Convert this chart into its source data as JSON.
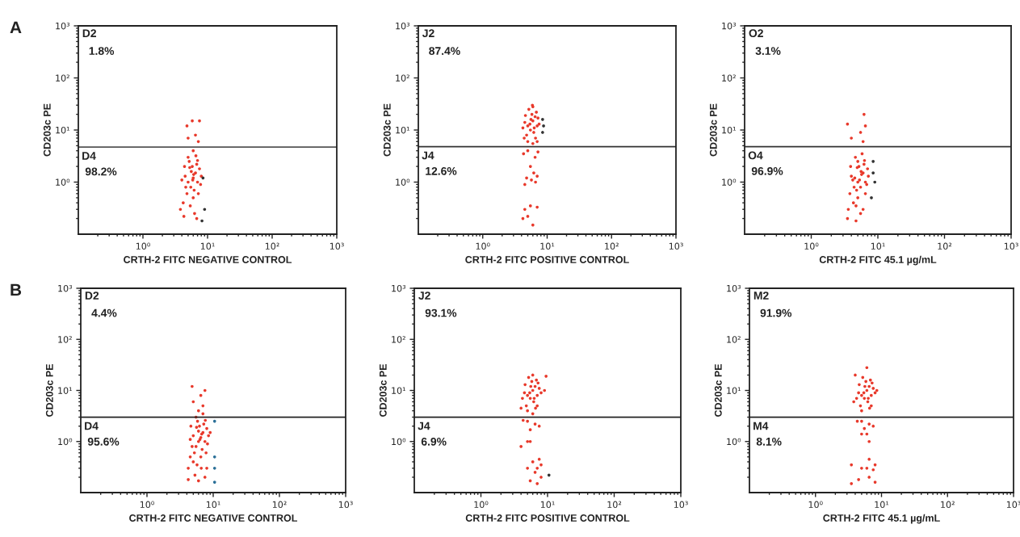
{
  "chart_data": [
    {
      "type": "scatter",
      "xlabel": "CRTH-2 FITC NEGATIVE CONTROL",
      "ylabel": "CD203c PE",
      "log": "xy",
      "marker": "circle",
      "xlim": [
        0.1,
        1000
      ],
      "ylim": [
        0.1,
        1000
      ],
      "xticks": [
        {
          "value": 1,
          "label": "10⁰"
        },
        {
          "value": 10,
          "label": "10¹"
        },
        {
          "value": 100,
          "label": "10²"
        },
        {
          "value": 1000,
          "label": "10³"
        }
      ],
      "yticks": [
        {
          "value": 1,
          "label": "10⁰"
        },
        {
          "value": 10,
          "label": "10¹"
        },
        {
          "value": 100,
          "label": "10²"
        },
        {
          "value": 1000,
          "label": "10³"
        }
      ],
      "ref_lines": [
        {
          "axis": "y",
          "value": 4.7,
          "color": "#555555"
        }
      ],
      "annotations": [
        "D2",
        "1.8%",
        "D4",
        "98.2%",
        "A"
      ],
      "series": [
        {
          "color": "#e8392b",
          "x": [
            5,
            6,
            5.5,
            6.5,
            4.5,
            7,
            5.8,
            6.2,
            4.8,
            7.5,
            5.2,
            6.8,
            4,
            8,
            5.6,
            6,
            4.2,
            7.2,
            5,
            6.6,
            3.8,
            6.3,
            5.4,
            4.6,
            7.8,
            5.9,
            6.1,
            5.3,
            4.4,
            7,
            6,
            5,
            6.5,
            4.8,
            5.8,
            7.5,
            7.2,
            4.3,
            6.8
          ],
          "values": [
            1,
            1.2,
            0.8,
            1.5,
            1.3,
            1,
            2,
            0.7,
            0.6,
            1.8,
            2.5,
            2.2,
            1.1,
            1.3,
            1.6,
            0.5,
            0.4,
            0.6,
            3,
            3.2,
            0.3,
            0.25,
            0.35,
            0.8,
            0.9,
            1.1,
            1.4,
            1.9,
            2,
            2.6,
            4,
            7,
            8,
            12,
            15,
            15,
            6,
            0.22,
            0.2
          ]
        },
        {
          "color": "#333333",
          "x": [
            8.5,
            9,
            8.2
          ],
          "values": [
            1.2,
            0.3,
            0.18
          ]
        }
      ]
    },
    {
      "type": "scatter",
      "xlabel": "CRTH-2 FITC POSITIVE CONTROL",
      "ylabel": "CD203c PE",
      "log": "xy",
      "marker": "circle",
      "xlim": [
        0.1,
        1000
      ],
      "ylim": [
        0.1,
        1000
      ],
      "xticks": [
        {
          "value": 1,
          "label": "10⁰"
        },
        {
          "value": 10,
          "label": "10¹"
        },
        {
          "value": 100,
          "label": "10²"
        },
        {
          "value": 1000,
          "label": "10³"
        }
      ],
      "yticks": [
        {
          "value": 1,
          "label": "10⁰"
        },
        {
          "value": 10,
          "label": "10¹"
        },
        {
          "value": 100,
          "label": "10²"
        },
        {
          "value": 1000,
          "label": "10³"
        }
      ],
      "ref_lines": [
        {
          "axis": "y",
          "value": 4.8,
          "color": "#333333"
        }
      ],
      "annotations": [
        "J2",
        "87.4%",
        "J4",
        "12.6%"
      ],
      "series": [
        {
          "color": "#e8392b",
          "x": [
            5,
            6,
            5.5,
            6.5,
            4.5,
            7,
            5.8,
            6.2,
            4.8,
            7.5,
            5.2,
            6.8,
            4.2,
            5.6,
            6,
            5,
            6.6,
            4.6,
            7.2,
            5.4,
            6.3,
            5.9,
            4.4,
            7,
            6,
            5,
            6.5,
            4.3,
            7.2,
            5.5,
            6.2,
            4.8,
            7,
            5.7,
            4.5,
            6.6,
            4.5,
            5.5,
            4.2,
            6,
            5,
            7
          ],
          "values": [
            12,
            15,
            10,
            18,
            14,
            12,
            20,
            9,
            8,
            13,
            25,
            22,
            11,
            16,
            28,
            6,
            7,
            19,
            17,
            13,
            11,
            30,
            7,
            6,
            5.5,
            4,
            3,
            3.5,
            3.8,
            2,
            1.5,
            1.2,
            1.3,
            1.1,
            0.9,
            1,
            0.3,
            0.35,
            0.2,
            0.15,
            0.22,
            0.33
          ]
        },
        {
          "color": "#333333",
          "x": [
            8.5,
            8.8,
            8.5
          ],
          "values": [
            16,
            12,
            9
          ]
        }
      ]
    },
    {
      "type": "scatter",
      "xlabel": "CRTH-2 FITC 45.1 µg/mL",
      "ylabel": "CD203c PE",
      "log": "xy",
      "marker": "circle",
      "xlim": [
        0.1,
        1000
      ],
      "ylim": [
        0.1,
        1000
      ],
      "xticks": [
        {
          "value": 1,
          "label": "10⁰"
        },
        {
          "value": 10,
          "label": "10¹"
        },
        {
          "value": 100,
          "label": "10²"
        },
        {
          "value": 1000,
          "label": "10³"
        }
      ],
      "yticks": [
        {
          "value": 1,
          "label": "10⁰"
        },
        {
          "value": 10,
          "label": "10¹"
        },
        {
          "value": 100,
          "label": "10²"
        },
        {
          "value": 1000,
          "label": "10³"
        }
      ],
      "ref_lines": [
        {
          "axis": "y",
          "value": 4.8,
          "color": "#333333"
        }
      ],
      "annotations": [
        "O2",
        "3.1%",
        "O4",
        "96.9%"
      ],
      "series": [
        {
          "color": "#e8392b",
          "x": [
            5,
            4.5,
            5.5,
            6,
            4,
            6.5,
            5.2,
            4.8,
            3.8,
            7,
            5,
            6.2,
            4.2,
            7.2,
            5.6,
            5,
            4.3,
            6.5,
            4.6,
            5.8,
            3.6,
            6,
            4.7,
            4.4,
            6.8,
            5.3,
            5.7,
            4.9,
            3.9,
            6.3,
            4,
            6,
            5.5,
            6.5,
            3.5,
            6.2,
            3.5,
            4.7,
            5.5
          ],
          "values": [
            1,
            1.2,
            0.8,
            1.5,
            1.3,
            1,
            2,
            0.7,
            0.6,
            1.8,
            2.5,
            2.2,
            1.1,
            1.3,
            1.6,
            0.5,
            0.4,
            0.6,
            3,
            3.5,
            0.3,
            0.3,
            0.35,
            0.8,
            0.9,
            1.1,
            1.4,
            1.9,
            2,
            2.6,
            7,
            6,
            9,
            12,
            13,
            20,
            0.2,
            0.18,
            0.25
          ]
        },
        {
          "color": "#333333",
          "x": [
            8.5,
            9,
            8,
            8.5
          ],
          "values": [
            1.5,
            1,
            0.5,
            2.5
          ]
        }
      ]
    },
    {
      "type": "scatter",
      "xlabel": "CRTH-2 FITC NEGATIVE CONTROL",
      "ylabel": "CD203c PE",
      "log": "xy",
      "marker": "circle",
      "xlim": [
        0.1,
        1000
      ],
      "ylim": [
        0.1,
        1000
      ],
      "xticks": [
        {
          "value": 1,
          "label": "10⁰"
        },
        {
          "value": 10,
          "label": "10¹"
        },
        {
          "value": 100,
          "label": "10²"
        },
        {
          "value": 1000,
          "label": "10³"
        }
      ],
      "yticks": [
        {
          "value": 1,
          "label": "10⁰"
        },
        {
          "value": 10,
          "label": "10¹"
        },
        {
          "value": 100,
          "label": "10²"
        },
        {
          "value": 1000,
          "label": "10³"
        }
      ],
      "ref_lines": [
        {
          "axis": "y",
          "value": 3,
          "color": "#222222"
        }
      ],
      "annotations": [
        "D2",
        "4.4%",
        "D4",
        "95.6%",
        "B"
      ],
      "series": [
        {
          "color": "#e8392b",
          "x": [
            6,
            6.5,
            5.5,
            7,
            5,
            7.5,
            6.2,
            6.8,
            5.2,
            8,
            5.8,
            7.2,
            4.5,
            8.5,
            6,
            6.5,
            5,
            7.8,
            5.5,
            7,
            4.2,
            6.6,
            5.7,
            4.8,
            8.2,
            6.3,
            6.7,
            5.6,
            4.6,
            7.6,
            6,
            7,
            5,
            6.5,
            4.8,
            7.5,
            4.2,
            6,
            7.5,
            5.3,
            8,
            4.5,
            9
          ],
          "values": [
            1,
            1.2,
            0.8,
            1.5,
            1.3,
            1,
            2,
            0.7,
            0.6,
            1.8,
            2.5,
            2.2,
            1.1,
            1.3,
            1.6,
            0.5,
            0.4,
            0.6,
            3,
            3.5,
            0.3,
            0.3,
            0.35,
            0.8,
            0.9,
            1.1,
            1.4,
            1.9,
            2,
            2.6,
            4,
            5,
            6,
            8,
            12,
            10,
            0.18,
            0.17,
            0.2,
            0.22,
            0.3,
            0.5,
            1.5
          ]
        },
        {
          "color": "#2a6f97",
          "x": [
            10.5,
            10.5,
            10.5,
            10.5
          ],
          "values": [
            2.5,
            0.5,
            0.3,
            0.16
          ]
        }
      ]
    },
    {
      "type": "scatter",
      "xlabel": "CRTH-2 FITC POSITIVE CONTROL",
      "ylabel": "CD203c PE",
      "log": "xy",
      "marker": "circle",
      "xlim": [
        0.1,
        1000
      ],
      "ylim": [
        0.1,
        1000
      ],
      "xticks": [
        {
          "value": 1,
          "label": "10⁰"
        },
        {
          "value": 10,
          "label": "10¹"
        },
        {
          "value": 100,
          "label": "10²"
        },
        {
          "value": 1000,
          "label": "10³"
        }
      ],
      "yticks": [
        {
          "value": 1,
          "label": "10⁰"
        },
        {
          "value": 10,
          "label": "10¹"
        },
        {
          "value": 100,
          "label": "10²"
        },
        {
          "value": 1000,
          "label": "10³"
        }
      ],
      "ref_lines": [
        {
          "axis": "y",
          "value": 3,
          "color": "#222222"
        }
      ],
      "annotations": [
        "J2",
        "93.1%",
        "J4",
        "6.9%"
      ],
      "series": [
        {
          "color": "#e8392b",
          "x": [
            5,
            6,
            5.5,
            6.5,
            4.5,
            7,
            5.8,
            6.2,
            4.8,
            7.5,
            5.2,
            6.8,
            4.2,
            8,
            5.6,
            6,
            5,
            6.6,
            4.6,
            7.2,
            5.4,
            6.3,
            9,
            9.5,
            4,
            7,
            6,
            5,
            6.5,
            4.3,
            7.5,
            5.5,
            4,
            5,
            5.5,
            6,
            7.5,
            5,
            6.5,
            7,
            8,
            5.5,
            7,
            8
          ],
          "values": [
            8,
            10,
            7,
            12,
            9,
            8,
            15,
            6,
            5,
            11,
            18,
            16,
            7,
            9,
            12,
            20,
            4,
            4.5,
            13,
            14,
            9,
            7,
            10,
            19,
            4.5,
            5,
            3.5,
            2.5,
            2.2,
            2.6,
            2,
            1.7,
            0.8,
            1,
            1,
            0.4,
            0.45,
            0.3,
            0.25,
            0.3,
            0.35,
            0.17,
            0.15,
            0.2
          ]
        },
        {
          "color": "#333333",
          "x": [
            10.5
          ],
          "values": [
            0.22
          ]
        }
      ]
    },
    {
      "type": "scatter",
      "xlabel": "CRTH-2 FITC 45.1 µg/mL",
      "ylabel": "CD203c PE",
      "log": "xy",
      "marker": "circle",
      "xlim": [
        0.1,
        1000
      ],
      "ylim": [
        0.1,
        1000
      ],
      "xticks": [
        {
          "value": 1,
          "label": "10⁰"
        },
        {
          "value": 10,
          "label": "10¹"
        },
        {
          "value": 100,
          "label": "10²"
        },
        {
          "value": 1000,
          "label": "10³"
        }
      ],
      "yticks": [
        {
          "value": 1,
          "label": "10⁰"
        },
        {
          "value": 10,
          "label": "10¹"
        },
        {
          "value": 100,
          "label": "10²"
        },
        {
          "value": 1000,
          "label": "10³"
        }
      ],
      "ref_lines": [
        {
          "axis": "y",
          "value": 3,
          "color": "#222222"
        }
      ],
      "annotations": [
        "M2",
        "91.9%",
        "M4",
        "8.1%"
      ],
      "series": [
        {
          "color": "#e8392b",
          "x": [
            5,
            6,
            5.5,
            6.5,
            4.5,
            7,
            5.8,
            6.2,
            4.8,
            7.5,
            5.2,
            6.8,
            4.2,
            8,
            5.6,
            6,
            5,
            6.6,
            4.6,
            7.2,
            5.4,
            6.3,
            8.5,
            4,
            3.8,
            7,
            5,
            6.5,
            4.3,
            7.5,
            5.5,
            5,
            6,
            6.5,
            6.5,
            3.5,
            5,
            6,
            7.5,
            8,
            4.5,
            3.5,
            6.5,
            8
          ],
          "values": [
            8,
            10,
            7,
            12,
            9,
            8,
            15,
            6,
            5,
            11,
            18,
            16,
            7,
            9,
            12,
            28,
            4,
            4.5,
            13,
            14,
            9,
            7,
            10,
            20,
            6,
            5,
            2.5,
            2.2,
            2.5,
            2,
            1.8,
            1.4,
            1.4,
            1,
            0.45,
            0.35,
            0.3,
            0.3,
            0.28,
            0.35,
            0.18,
            0.15,
            0.2,
            0.16
          ]
        }
      ]
    }
  ]
}
